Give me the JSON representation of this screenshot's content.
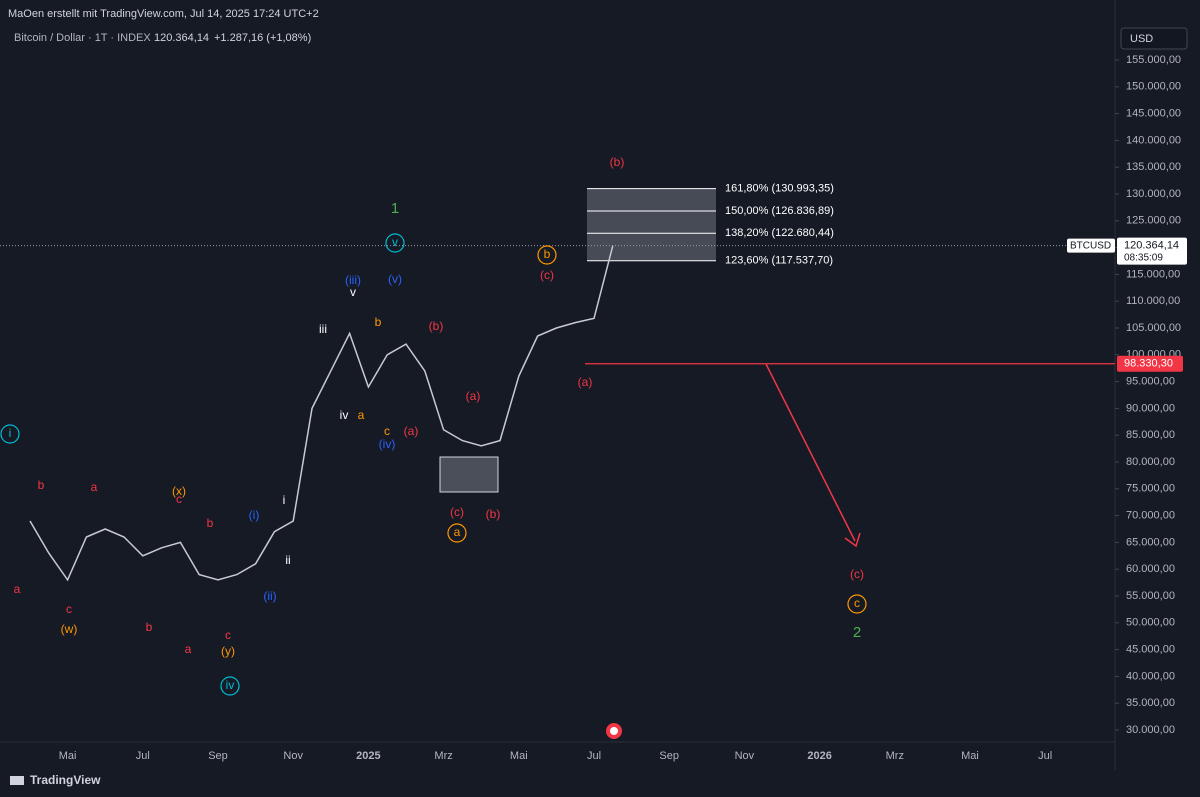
{
  "header": {
    "attribution": "MaOen erstellt mit TradingView.com, Jul 14, 2025 17:24 UTC+2",
    "symbol": "Bitcoin / Dollar · 1T · INDEX",
    "last": "120.364,14",
    "change": "+1.287,16 (+1,08%)",
    "currency": "USD",
    "logo": "TradingView"
  },
  "chart_data": {
    "type": "line",
    "color": "#c8cad0",
    "categories": [
      null,
      null,
      "Mai",
      null,
      null,
      null,
      "Jul",
      null,
      null,
      null,
      "Sep",
      null,
      null,
      null,
      "Nov",
      null,
      null,
      null,
      "2025",
      null,
      null,
      null,
      "Mrz",
      null,
      null,
      null,
      "Mai",
      null,
      null,
      null,
      "Jul",
      null,
      null,
      null,
      "Sep",
      null,
      null,
      null,
      "Nov",
      null,
      null,
      null,
      "2026",
      null,
      null,
      null,
      "Mrz",
      null,
      null,
      null,
      "Mai",
      null,
      null,
      null,
      "Jul",
      null,
      null,
      null
    ],
    "values": [
      69000,
      63000,
      58000,
      66000,
      67500,
      66000,
      62500,
      64000,
      65000,
      59000,
      58000,
      59000,
      61000,
      67000,
      69000,
      90000,
      97000,
      104000,
      94000,
      100000,
      102000,
      97000,
      86000,
      84000,
      83000,
      84000,
      96000,
      103500,
      105000,
      106000,
      106800,
      120364.14,
      null,
      null,
      null,
      null,
      null,
      null,
      null,
      null,
      null,
      null,
      null,
      null,
      null,
      null,
      null,
      null,
      null,
      null,
      null,
      null,
      null,
      null,
      null,
      null,
      null,
      null
    ],
    "ylim": [
      27200,
      160600
    ],
    "yticks": [
      {
        "value": 30000,
        "label": "30.000,00"
      },
      {
        "value": 35000,
        "label": "35.000,00"
      },
      {
        "value": 40000,
        "label": "40.000,00"
      },
      {
        "value": 45000,
        "label": "45.000,00"
      },
      {
        "value": 50000,
        "label": "50.000,00"
      },
      {
        "value": 55000,
        "label": "55.000,00"
      },
      {
        "value": 60000,
        "label": "60.000,00"
      },
      {
        "value": 65000,
        "label": "65.000,00"
      },
      {
        "value": 70000,
        "label": "70.000,00"
      },
      {
        "value": 75000,
        "label": "75.000,00"
      },
      {
        "value": 80000,
        "label": "80.000,00"
      },
      {
        "value": 85000,
        "label": "85.000,00"
      },
      {
        "value": 90000,
        "label": "90.000,00"
      },
      {
        "value": 95000,
        "label": "95.000,00"
      },
      {
        "value": 100000,
        "label": "100.000,00"
      },
      {
        "value": 105000,
        "label": "105.000,00"
      },
      {
        "value": 110000,
        "label": "110.000,00"
      },
      {
        "value": 115000,
        "label": "115.000,00"
      },
      {
        "value": 120000,
        "label": "120.000,00"
      },
      {
        "value": 125000,
        "label": "125.000,00"
      },
      {
        "value": 130000,
        "label": "130.000,00"
      },
      {
        "value": 135000,
        "label": "135.000,00"
      },
      {
        "value": 140000,
        "label": "140.000,00"
      },
      {
        "value": 145000,
        "label": "145.000,00"
      },
      {
        "value": 150000,
        "label": "150.000,00"
      },
      {
        "value": 155000,
        "label": "155.000,00"
      }
    ],
    "fib_levels": [
      {
        "value": 130993.35,
        "label": "161,80% (130.993,35)"
      },
      {
        "value": 126836.89,
        "label": "150,00% (126.836,89)"
      },
      {
        "value": 122680.44,
        "label": "138,20% (122.680,44)"
      },
      {
        "value": 117537.7,
        "label": "123,60% (117.537,70)"
      }
    ],
    "stop_level": {
      "value": 98330.3,
      "label": "98.330,30",
      "color": "#f23645"
    },
    "current_price": {
      "value": 120364.14,
      "label": "120.364,14",
      "symbol": "BTCUSD",
      "countdown": "08:35:09"
    },
    "wave_labels": [
      {
        "text": "(b)",
        "color": "#f23645"
      },
      {
        "text": "1",
        "color": "#4caf50"
      },
      {
        "text": "v",
        "color": "#00bcd4",
        "circled": true
      },
      {
        "text": "b",
        "color": "#ff9800",
        "circled": true
      },
      {
        "text": "(c)",
        "color": "#f23645"
      },
      {
        "text": "(iii)",
        "color": "#2962ff"
      },
      {
        "text": "v",
        "color": "#ffffff"
      },
      {
        "text": "(v)",
        "color": "#2962ff"
      },
      {
        "text": "iii",
        "color": "#ffffff"
      },
      {
        "text": "b",
        "color": "#ff9800"
      },
      {
        "text": "(b)",
        "color": "#f23645"
      },
      {
        "text": "(a)",
        "color": "#f23645"
      },
      {
        "text": "(a)",
        "color": "#f23645"
      },
      {
        "text": "iv",
        "color": "#ffffff"
      },
      {
        "text": "a",
        "color": "#ff9800"
      },
      {
        "text": "c",
        "color": "#ff9800"
      },
      {
        "text": "(a)",
        "color": "#f23645"
      },
      {
        "text": "(iv)",
        "color": "#2962ff"
      },
      {
        "text": "i",
        "color": "#00bcd4",
        "circled": true
      },
      {
        "text": "b",
        "color": "#f23645"
      },
      {
        "text": "a",
        "color": "#f23645"
      },
      {
        "text": "(x)",
        "color": "#ff9800"
      },
      {
        "text": "c",
        "color": "#f23645"
      },
      {
        "text": "i",
        "color": "#ffffff"
      },
      {
        "text": "b",
        "color": "#f23645"
      },
      {
        "text": "(i)",
        "color": "#2962ff"
      },
      {
        "text": "(c)",
        "color": "#f23645"
      },
      {
        "text": "(b)",
        "color": "#f23645"
      },
      {
        "text": "a",
        "color": "#ff9800",
        "circled": true
      },
      {
        "text": "ii",
        "color": "#ffffff"
      },
      {
        "text": "a",
        "color": "#f23645"
      },
      {
        "text": "(ii)",
        "color": "#2962ff"
      },
      {
        "text": "c",
        "color": "#f23645"
      },
      {
        "text": "(w)",
        "color": "#ff9800"
      },
      {
        "text": "b",
        "color": "#f23645"
      },
      {
        "text": "c",
        "color": "#f23645"
      },
      {
        "text": "a",
        "color": "#f23645"
      },
      {
        "text": "(y)",
        "color": "#ff9800"
      },
      {
        "text": "iv",
        "color": "#00bcd4",
        "circled": true
      },
      {
        "text": "(c)",
        "color": "#f23645"
      },
      {
        "text": "c",
        "color": "#ff9800",
        "circled": true
      },
      {
        "text": "2",
        "color": "#4caf50"
      }
    ]
  }
}
